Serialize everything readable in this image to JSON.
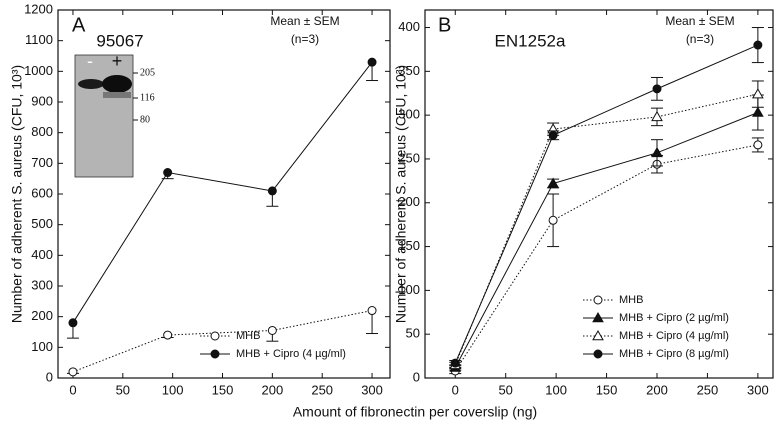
{
  "xlabel": "Amount of fibronectin per coverslip (ng)",
  "chart_data": [
    {
      "type": "line",
      "panel_label": "A",
      "title": "95067",
      "annotations": [
        "Mean ± SEM",
        "(n=3)"
      ],
      "ylabel": "Number of adherent S. aureus (CFU, 10³)",
      "x": [
        0,
        95,
        200,
        300
      ],
      "xlim": [
        -15,
        318
      ],
      "xticks": [
        0,
        50,
        100,
        150,
        200,
        250,
        300
      ],
      "ylim": [
        0,
        1200
      ],
      "yticks": [
        0,
        100,
        200,
        300,
        400,
        500,
        600,
        700,
        800,
        900,
        1000,
        1100,
        1200
      ],
      "legend": "lower right",
      "error_direction": "down",
      "inset": {
        "lanes": [
          "-",
          "+"
        ],
        "markers": [
          "205",
          "116",
          "80"
        ]
      },
      "series": [
        {
          "name": "MHB",
          "color": "#111111",
          "marker": "open-circle",
          "line": "dotted",
          "values": [
            20,
            140,
            155,
            220
          ],
          "errors": [
            5,
            8,
            35,
            75
          ]
        },
        {
          "name": "MHB + Cipro (4 µg/ml)",
          "color": "#111111",
          "marker": "filled-circle",
          "line": "solid",
          "values": [
            180,
            670,
            610,
            1030
          ],
          "errors": [
            50,
            20,
            50,
            60
          ]
        }
      ]
    },
    {
      "type": "line",
      "panel_label": "B",
      "title": "EN1252a",
      "annotations": [
        "Mean ± SEM",
        "(n=3)"
      ],
      "ylabel": "Number of adherent S. aureus (CFU, 10³)",
      "x": [
        0,
        97,
        200,
        300
      ],
      "xlim": [
        -30,
        315
      ],
      "xticks": [
        0,
        50,
        100,
        150,
        200,
        250,
        300
      ],
      "ylim": [
        0,
        420
      ],
      "yticks": [
        0,
        50,
        100,
        150,
        200,
        250,
        300,
        350,
        400
      ],
      "legend": "lower right",
      "error_direction": "both",
      "series": [
        {
          "name": "MHB",
          "color": "#111111",
          "marker": "open-circle",
          "line": "dotted",
          "values": [
            8,
            180,
            244,
            266
          ],
          "errors": [
            3,
            30,
            10,
            8
          ]
        },
        {
          "name": "MHB + Cipro (2 µg/ml)",
          "color": "#111111",
          "marker": "filled-triangle",
          "line": "solid",
          "values": [
            12,
            222,
            257,
            303
          ],
          "errors": [
            3,
            5,
            15,
            20
          ]
        },
        {
          "name": "MHB + Cipro (4 µg/ml)",
          "color": "#111111",
          "marker": "open-triangle",
          "line": "dotted",
          "values": [
            15,
            284,
            298,
            324
          ],
          "errors": [
            3,
            7,
            10,
            15
          ]
        },
        {
          "name": "MHB + Cipro (8 µg/ml)",
          "color": "#111111",
          "marker": "filled-circle",
          "line": "solid",
          "values": [
            17,
            277,
            330,
            380
          ],
          "errors": [
            3,
            5,
            13,
            20
          ]
        }
      ]
    }
  ]
}
